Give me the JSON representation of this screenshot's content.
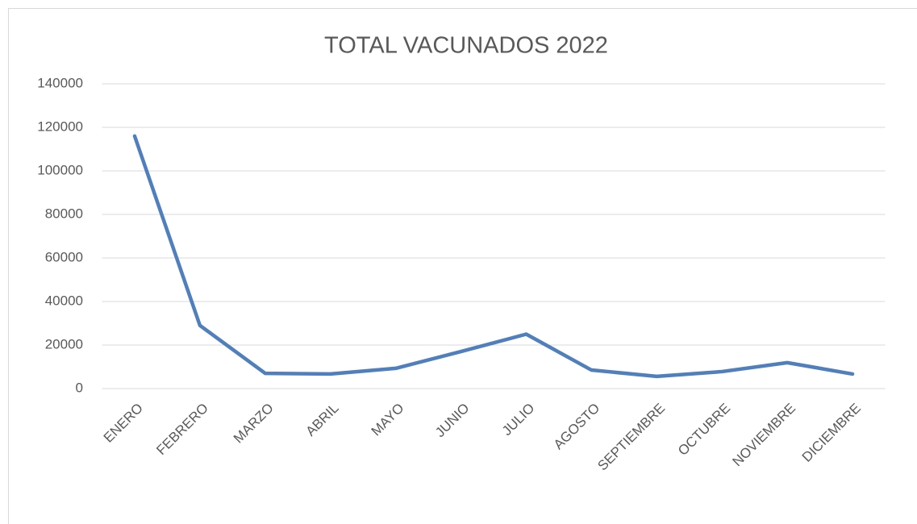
{
  "chart_data": {
    "type": "line",
    "title": "TOTAL VACUNADOS 2022",
    "categories": [
      "ENERO",
      "FEBRERO",
      "MARZO",
      "ABRIL",
      "MAYO",
      "JUNIO",
      "JULIO",
      "AGOSTO",
      "SEPTIEMBRE",
      "OCTUBRE",
      "NOVIEMBRE",
      "DICIEMBRE"
    ],
    "series": [
      {
        "name": "TOTAL VACUNADOS",
        "color": "#4f7fbd",
        "values": [
          116000,
          29000,
          7000,
          6700,
          9300,
          17000,
          25000,
          8500,
          5600,
          7800,
          11900,
          6700
        ]
      }
    ],
    "ylim": [
      0,
      140000
    ],
    "yticks": [
      0,
      20000,
      40000,
      60000,
      80000,
      100000,
      120000,
      140000
    ],
    "grid": true
  }
}
